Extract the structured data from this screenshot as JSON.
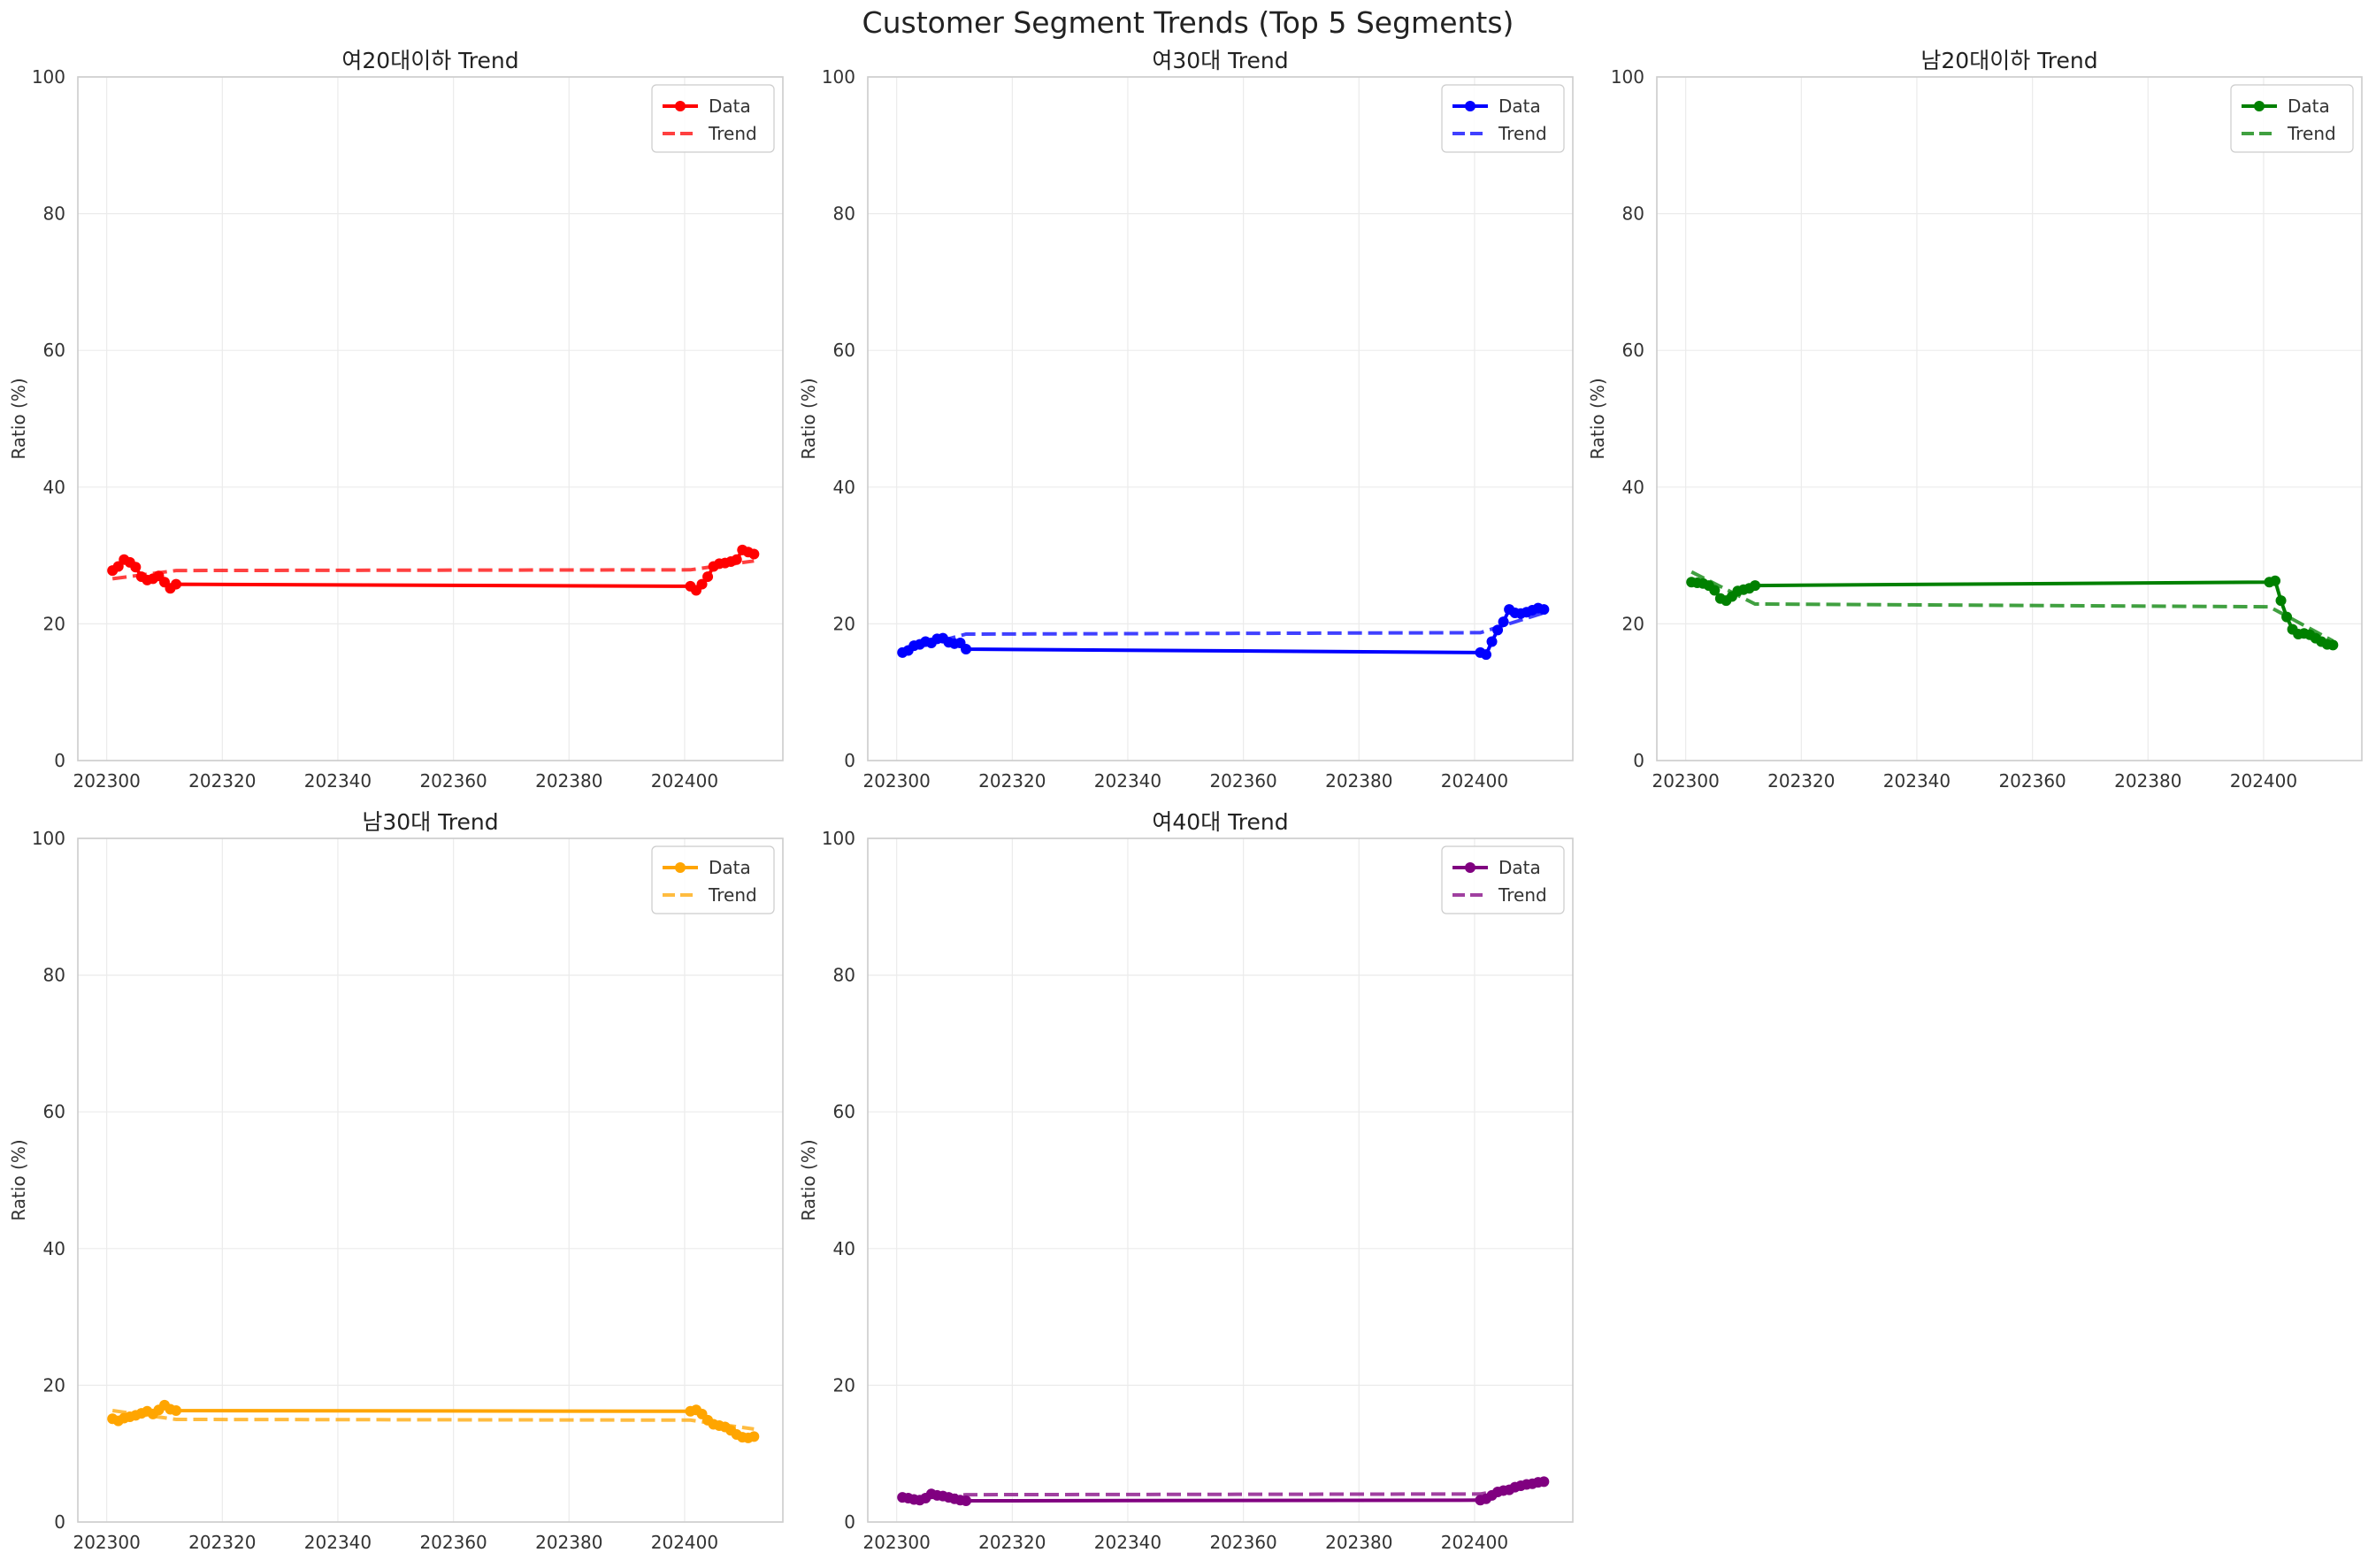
{
  "figure": {
    "title": "Customer Segment Trends (Top 5 Segments)"
  },
  "chart_data": [
    {
      "type": "line",
      "title": "여20대이하 Trend",
      "ylabel": "Ratio (%)",
      "xlim": [
        202295,
        202417
      ],
      "ylim": [
        0,
        100
      ],
      "xticks": [
        "202300",
        "202320",
        "202340",
        "202360",
        "202380",
        "202400"
      ],
      "yticks": [
        "0",
        "20",
        "40",
        "60",
        "80",
        "100"
      ],
      "color": "#ff0000",
      "legend": {
        "placement": "top-right",
        "entries": [
          "Data",
          "Trend"
        ]
      },
      "grid": true,
      "series": [
        {
          "name": "Data",
          "style": "solid-markers",
          "x": [
            202301,
            202302,
            202303,
            202304,
            202305,
            202306,
            202307,
            202308,
            202309,
            202310,
            202311,
            202312,
            202401,
            202402,
            202403,
            202404,
            202405,
            202406,
            202407,
            202408,
            202409,
            202410,
            202411,
            202412
          ],
          "y": [
            27.8,
            28.4,
            29.4,
            29.0,
            28.3,
            26.9,
            26.4,
            26.6,
            27.0,
            26.1,
            25.2,
            25.8,
            25.5,
            24.9,
            25.8,
            26.9,
            28.4,
            28.8,
            28.9,
            29.1,
            29.4,
            30.8,
            30.5,
            30.2
          ]
        },
        {
          "name": "Trend",
          "style": "dashed",
          "x": [
            202301,
            202312,
            202401,
            202412
          ],
          "y": [
            26.6,
            27.8,
            27.9,
            29.2
          ]
        }
      ]
    },
    {
      "type": "line",
      "title": "여30대 Trend",
      "ylabel": "Ratio (%)",
      "xlim": [
        202295,
        202417
      ],
      "ylim": [
        0,
        100
      ],
      "xticks": [
        "202300",
        "202320",
        "202340",
        "202360",
        "202380",
        "202400"
      ],
      "yticks": [
        "0",
        "20",
        "40",
        "60",
        "80",
        "100"
      ],
      "color": "#0000ff",
      "legend": {
        "placement": "top-right",
        "entries": [
          "Data",
          "Trend"
        ]
      },
      "grid": true,
      "series": [
        {
          "name": "Data",
          "style": "solid-markers",
          "x": [
            202301,
            202302,
            202303,
            202304,
            202305,
            202306,
            202307,
            202308,
            202309,
            202310,
            202311,
            202312,
            202401,
            202402,
            202403,
            202404,
            202405,
            202406,
            202407,
            202408,
            202409,
            202410,
            202411,
            202412
          ],
          "y": [
            15.8,
            16.1,
            16.8,
            17.0,
            17.4,
            17.2,
            17.8,
            17.9,
            17.3,
            17.1,
            17.2,
            16.3,
            15.8,
            15.5,
            17.4,
            19.1,
            20.3,
            22.1,
            21.6,
            21.5,
            21.7,
            22.0,
            22.3,
            22.1
          ]
        },
        {
          "name": "Trend",
          "style": "dashed",
          "x": [
            202301,
            202312,
            202401,
            202412
          ],
          "y": [
            16.0,
            18.5,
            18.7,
            21.6
          ]
        }
      ]
    },
    {
      "type": "line",
      "title": "남20대이하 Trend",
      "ylabel": "Ratio (%)",
      "xlim": [
        202295,
        202417
      ],
      "ylim": [
        0,
        100
      ],
      "xticks": [
        "202300",
        "202320",
        "202340",
        "202360",
        "202380",
        "202400"
      ],
      "yticks": [
        "0",
        "20",
        "40",
        "60",
        "80",
        "100"
      ],
      "color": "#008000",
      "legend": {
        "placement": "top-right",
        "entries": [
          "Data",
          "Trend"
        ]
      },
      "grid": true,
      "series": [
        {
          "name": "Data",
          "style": "solid-markers",
          "x": [
            202301,
            202302,
            202303,
            202304,
            202305,
            202306,
            202307,
            202308,
            202309,
            202310,
            202311,
            202312,
            202401,
            202402,
            202403,
            202404,
            202405,
            202406,
            202407,
            202408,
            202409,
            202410,
            202411,
            202412
          ],
          "y": [
            26.1,
            26.0,
            25.9,
            25.6,
            24.9,
            23.7,
            23.4,
            24.0,
            24.8,
            25.0,
            25.2,
            25.6,
            26.1,
            26.3,
            23.4,
            21.0,
            19.2,
            18.5,
            18.6,
            18.4,
            17.9,
            17.4,
            17.0,
            16.9
          ]
        },
        {
          "name": "Trend",
          "style": "dashed",
          "x": [
            202301,
            202312,
            202401,
            202412
          ],
          "y": [
            27.6,
            22.9,
            22.5,
            17.5
          ]
        }
      ]
    },
    {
      "type": "line",
      "title": "남30대 Trend",
      "ylabel": "Ratio (%)",
      "xlim": [
        202295,
        202417
      ],
      "ylim": [
        0,
        100
      ],
      "xticks": [
        "202300",
        "202320",
        "202340",
        "202360",
        "202380",
        "202400"
      ],
      "yticks": [
        "0",
        "20",
        "40",
        "60",
        "80",
        "100"
      ],
      "color": "#ffa500",
      "legend": {
        "placement": "top-right",
        "entries": [
          "Data",
          "Trend"
        ]
      },
      "grid": true,
      "series": [
        {
          "name": "Data",
          "style": "solid-markers",
          "x": [
            202301,
            202302,
            202303,
            202304,
            202305,
            202306,
            202307,
            202308,
            202309,
            202310,
            202311,
            202312,
            202401,
            202402,
            202403,
            202404,
            202405,
            202406,
            202407,
            202408,
            202409,
            202410,
            202411,
            202412
          ],
          "y": [
            15.1,
            14.8,
            15.2,
            15.4,
            15.6,
            15.9,
            16.2,
            15.8,
            16.4,
            17.1,
            16.5,
            16.3,
            16.2,
            16.4,
            15.8,
            14.9,
            14.3,
            14.1,
            13.9,
            13.4,
            12.8,
            12.4,
            12.3,
            12.5
          ]
        },
        {
          "name": "Trend",
          "style": "dashed",
          "x": [
            202301,
            202312,
            202401,
            202412
          ],
          "y": [
            16.3,
            15.0,
            14.9,
            13.6
          ]
        }
      ]
    },
    {
      "type": "line",
      "title": "여40대 Trend",
      "ylabel": "Ratio (%)",
      "xlim": [
        202295,
        202417
      ],
      "ylim": [
        0,
        100
      ],
      "xticks": [
        "202300",
        "202320",
        "202340",
        "202360",
        "202380",
        "202400"
      ],
      "yticks": [
        "0",
        "20",
        "40",
        "60",
        "80",
        "100"
      ],
      "color": "#800080",
      "legend": {
        "placement": "top-right",
        "entries": [
          "Data",
          "Trend"
        ]
      },
      "grid": true,
      "series": [
        {
          "name": "Data",
          "style": "solid-markers",
          "x": [
            202301,
            202302,
            202303,
            202304,
            202305,
            202306,
            202307,
            202308,
            202309,
            202310,
            202311,
            202312,
            202401,
            202402,
            202403,
            202404,
            202405,
            202406,
            202407,
            202408,
            202409,
            202410,
            202411,
            202412
          ],
          "y": [
            3.6,
            3.5,
            3.3,
            3.2,
            3.5,
            4.1,
            3.9,
            3.8,
            3.6,
            3.4,
            3.2,
            3.1,
            3.2,
            3.4,
            3.9,
            4.4,
            4.6,
            4.7,
            5.1,
            5.3,
            5.5,
            5.6,
            5.8,
            5.9
          ]
        },
        {
          "name": "Trend",
          "style": "dashed",
          "x": [
            202301,
            202312,
            202401,
            202412
          ],
          "y": [
            3.3,
            4.0,
            4.1,
            5.7
          ]
        }
      ]
    }
  ]
}
